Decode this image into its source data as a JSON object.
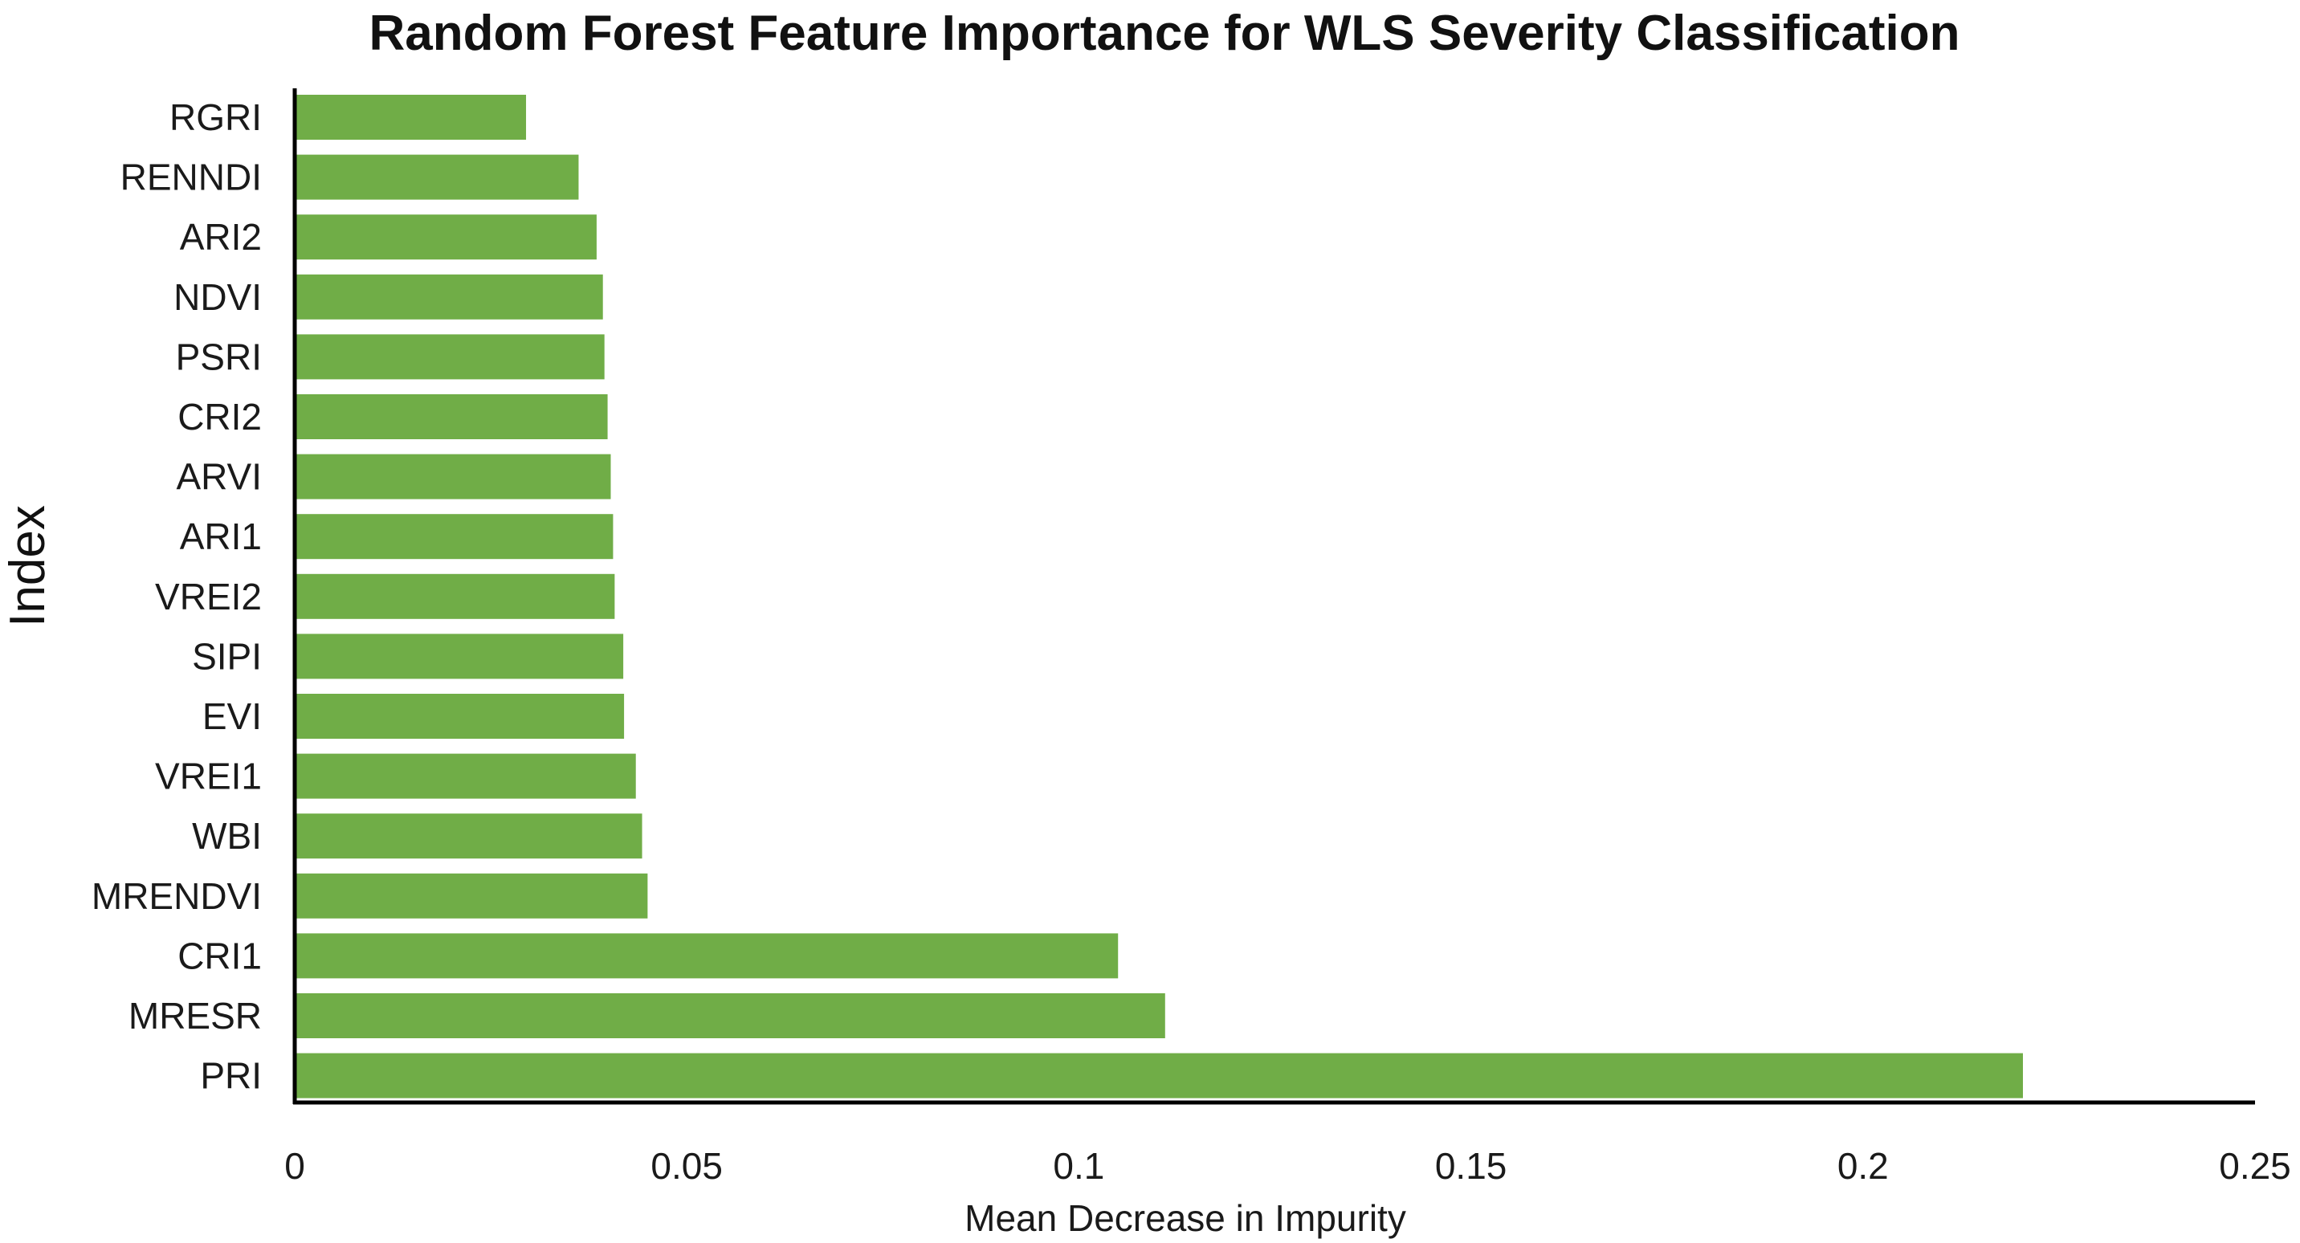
{
  "chart_data": {
    "type": "bar",
    "orientation": "horizontal",
    "title": "Random Forest Feature Importance for WLS Severity Classification",
    "xlabel": "Mean Decrease in Impurity",
    "ylabel": "Index",
    "xlim": [
      0,
      0.25
    ],
    "xticks": [
      0,
      0.05,
      0.1,
      0.15,
      0.2,
      0.25
    ],
    "xtick_labels": [
      "0",
      "0.05",
      "0.1",
      "0.15",
      "0.2",
      "0.25"
    ],
    "categories": [
      "RGRI",
      "RENNDI",
      "ARI2",
      "NDVI",
      "PSRI",
      "CRI2",
      "ARVI",
      "ARI1",
      "VREI2",
      "SIPI",
      "EVI",
      "VREI1",
      "WBI",
      "MRENDVI",
      "CRI1",
      "MRESR",
      "PRI"
    ],
    "values": [
      0.0295,
      0.0362,
      0.0385,
      0.0393,
      0.0395,
      0.0399,
      0.0403,
      0.0406,
      0.0408,
      0.0419,
      0.042,
      0.0435,
      0.0443,
      0.045,
      0.105,
      0.111,
      0.2204
    ],
    "bar_color": "#70ad47",
    "grid": false,
    "legend": false
  }
}
